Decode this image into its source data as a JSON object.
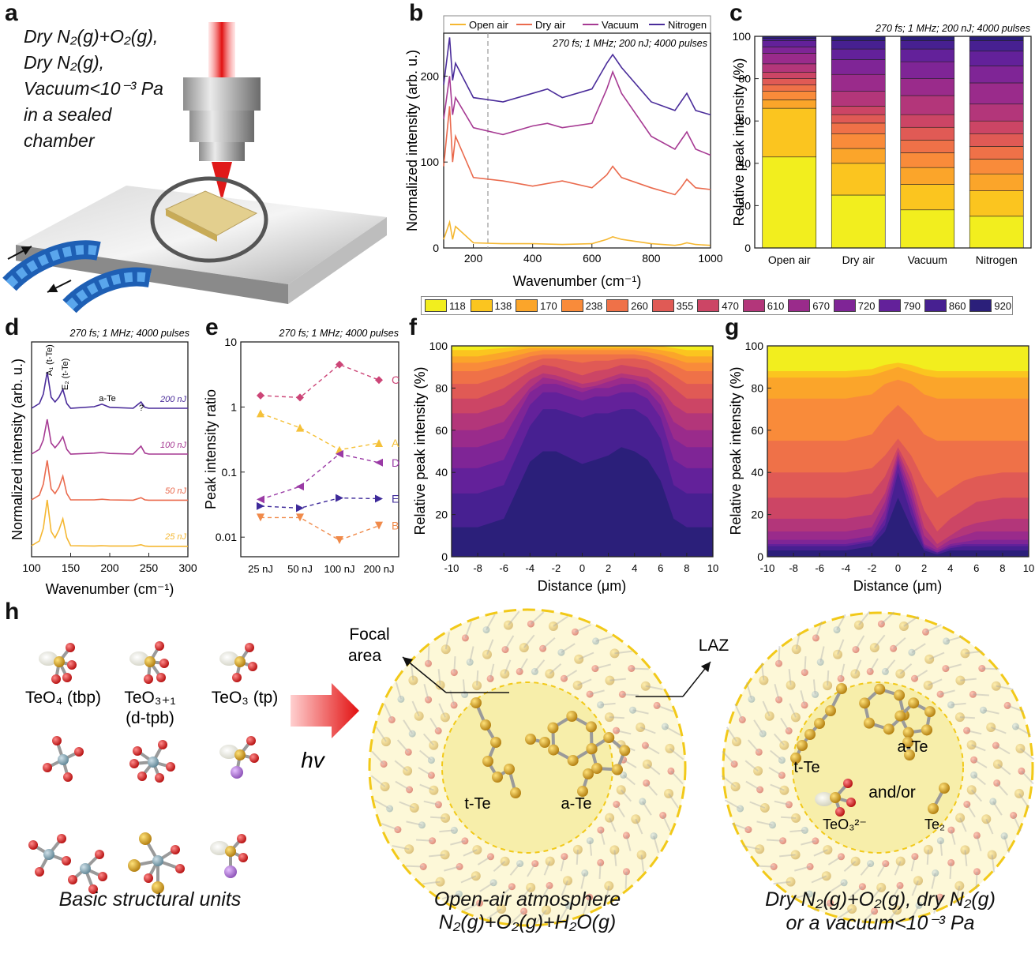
{
  "panel_labels": {
    "a": "a",
    "b": "b",
    "c": "c",
    "d": "d",
    "e": "e",
    "f": "f",
    "g": "g",
    "h": "h"
  },
  "panel_a": {
    "lines": [
      "Dry N₂(g)+O₂(g),",
      "Dry N₂(g),",
      "Vacuum<10⁻³ Pa",
      "in a sealed",
      "chamber"
    ]
  },
  "panel_b": {
    "annotation": "270 fs; 1 MHz; 200 nJ; 4000 pulses",
    "legend": [
      "Open air",
      "Dry air",
      "Vacuum",
      "Nitrogen"
    ],
    "xlabel": "Wavenumber (cm⁻¹)",
    "ylabel": "Normalized intensity (arb. u.)"
  },
  "panel_c": {
    "annotation": "270 fs; 1 MHz; 200 nJ; 4000 pulses",
    "ylabel": "Relative peak intensity (%)"
  },
  "panel_d": {
    "annotation": "270 fs; 1 MHz; 4000 pulses",
    "xlabel": "Wavenumber (cm⁻¹)",
    "ylabel": "Normalized intensity (arb. u.)",
    "peak_labels": [
      "A₁ (t-Te)",
      "E₂ (t-Te)",
      "a-Te",
      "?"
    ]
  },
  "panel_e": {
    "annotation": "270 fs; 1 MHz; 4000 pulses",
    "ylabel": "Peak intensity ratio"
  },
  "panel_f": {
    "xlabel": "Distance (μm)",
    "ylabel": "Relative peak intensity (%)"
  },
  "panel_g": {
    "xlabel": "Distance (μm)",
    "ylabel": "Relative peak intensity (%)"
  },
  "colorbar": {
    "labels": [
      "118",
      "138",
      "170",
      "238",
      "260",
      "355",
      "470",
      "610",
      "670",
      "720",
      "790",
      "860",
      "920"
    ],
    "colors": [
      "#f2ee1e",
      "#fbc51f",
      "#fba52a",
      "#f98b3a",
      "#ef7148",
      "#e05a55",
      "#cc4565",
      "#b3367a",
      "#9a2b8b",
      "#7f2596",
      "#63219a",
      "#472091",
      "#2b1f7a"
    ]
  },
  "panel_h": {
    "units_row1": [
      "TeO₄ (tbp)",
      "TeO₃₊₁",
      "(d-tpb)",
      "TeO₃ (tp)"
    ],
    "hv": "hv",
    "focal_area": [
      "Focal",
      "area"
    ],
    "laz": "LAZ",
    "mid_labels": [
      "t-Te",
      "a-Te"
    ],
    "right_labels": [
      "a-Te",
      "t-Te",
      "and/or",
      "TeO₃²⁻",
      "Te₂"
    ],
    "caption_left": "Basic structural units",
    "caption_mid": [
      "Open-air atmosphere",
      "N₂(g)+O₂(g)+H₂O(g)"
    ],
    "caption_right": [
      "Dry N₂(g)+O₂(g), dry N₂(g)",
      "or a vacuum<10⁻³ Pa"
    ]
  },
  "chart_data": [
    {
      "panel": "b",
      "type": "line",
      "xlim": [
        100,
        1000
      ],
      "ylim": [
        0,
        250
      ],
      "xticks": [
        "200",
        "400",
        "600",
        "800",
        "1000"
      ],
      "yticks": [
        "0",
        "100",
        "200"
      ],
      "series": [
        {
          "name": "Open air",
          "color": "#f5b731",
          "x": [
            100,
            120,
            130,
            140,
            200,
            300,
            400,
            500,
            600,
            650,
            670,
            700,
            800,
            880,
            900,
            920,
            950,
            1000
          ],
          "y": [
            10,
            30,
            10,
            25,
            6,
            5,
            5,
            4,
            5,
            10,
            13,
            10,
            5,
            3,
            4,
            6,
            4,
            3
          ]
        },
        {
          "name": "Dry air",
          "color": "#ea6a4d",
          "x": [
            100,
            120,
            130,
            140,
            200,
            300,
            400,
            500,
            600,
            650,
            670,
            700,
            800,
            880,
            900,
            920,
            950,
            1000
          ],
          "y": [
            95,
            165,
            100,
            130,
            82,
            78,
            72,
            78,
            70,
            85,
            95,
            82,
            70,
            62,
            70,
            80,
            70,
            68
          ]
        },
        {
          "name": "Vacuum",
          "color": "#a63a93",
          "x": [
            100,
            120,
            130,
            140,
            200,
            300,
            400,
            450,
            500,
            600,
            650,
            670,
            700,
            800,
            880,
            900,
            920,
            950,
            1000
          ],
          "y": [
            150,
            200,
            155,
            175,
            140,
            132,
            142,
            145,
            140,
            145,
            185,
            205,
            180,
            130,
            115,
            125,
            135,
            115,
            108
          ]
        },
        {
          "name": "Nitrogen",
          "color": "#4a2c9a",
          "x": [
            100,
            120,
            130,
            140,
            200,
            300,
            400,
            450,
            500,
            600,
            650,
            670,
            700,
            800,
            880,
            900,
            920,
            950,
            1000
          ],
          "y": [
            190,
            245,
            195,
            215,
            175,
            170,
            180,
            185,
            175,
            185,
            215,
            225,
            210,
            170,
            160,
            170,
            180,
            160,
            155
          ]
        }
      ]
    },
    {
      "panel": "c",
      "type": "bar",
      "categories": [
        "Open air",
        "Dry air",
        "Vacuum",
        "Nitrogen"
      ],
      "ylim": [
        0,
        100
      ],
      "yticks": [
        "0",
        "20",
        "40",
        "60",
        "80",
        "100"
      ],
      "stack_order": [
        "118",
        "138",
        "170",
        "238",
        "260",
        "355",
        "470",
        "610",
        "670",
        "720",
        "790",
        "860",
        "920"
      ],
      "values": [
        [
          43,
          23,
          4,
          4,
          3,
          3,
          3,
          4,
          5,
          3,
          3,
          1,
          1
        ],
        [
          25,
          15,
          7,
          7,
          5,
          4,
          4,
          7,
          8,
          7,
          5,
          4,
          2
        ],
        [
          18,
          12,
          8,
          7,
          6,
          6,
          6,
          9,
          8,
          8,
          6,
          4,
          2
        ],
        [
          15,
          12,
          8,
          7,
          6,
          6,
          6,
          8,
          10,
          8,
          7,
          5,
          2
        ]
      ]
    },
    {
      "panel": "d",
      "type": "line",
      "xlim": [
        100,
        300
      ],
      "xticks": [
        "100",
        "150",
        "200",
        "250",
        "300"
      ],
      "series": [
        {
          "name": "200 nJ",
          "color": "#4a2c9a",
          "offset": 3.0,
          "x": [
            100,
            110,
            115,
            120,
            125,
            130,
            135,
            140,
            145,
            150,
            180,
            190,
            200,
            230,
            240,
            245,
            250,
            300
          ],
          "y": [
            0.05,
            0.2,
            0.5,
            1.2,
            0.4,
            0.25,
            0.4,
            0.65,
            0.2,
            0.05,
            0.1,
            0.18,
            0.08,
            0.05,
            0.25,
            0.08,
            0.05,
            0.05
          ]
        },
        {
          "name": "100 nJ",
          "color": "#a63a93",
          "offset": 2.0,
          "x": [
            100,
            110,
            115,
            120,
            125,
            130,
            135,
            140,
            145,
            150,
            180,
            190,
            200,
            230,
            240,
            245,
            250,
            300
          ],
          "y": [
            0.05,
            0.2,
            0.5,
            1.15,
            0.4,
            0.25,
            0.4,
            0.6,
            0.2,
            0.05,
            0.08,
            0.1,
            0.07,
            0.05,
            0.3,
            0.08,
            0.05,
            0.05
          ]
        },
        {
          "name": "50 nJ",
          "color": "#ea6a4d",
          "offset": 1.0,
          "x": [
            100,
            110,
            115,
            120,
            125,
            130,
            135,
            140,
            145,
            150,
            180,
            190,
            200,
            230,
            240,
            245,
            250,
            300
          ],
          "y": [
            0.05,
            0.2,
            0.55,
            1.3,
            0.4,
            0.25,
            0.45,
            0.8,
            0.25,
            0.05,
            0.05,
            0.07,
            0.05,
            0.04,
            0.12,
            0.05,
            0.04,
            0.04
          ]
        },
        {
          "name": "25 nJ",
          "color": "#f5b731",
          "offset": 0,
          "x": [
            100,
            110,
            115,
            120,
            125,
            130,
            135,
            140,
            145,
            150,
            180,
            190,
            200,
            230,
            240,
            245,
            250,
            300
          ],
          "y": [
            0.05,
            0.2,
            0.6,
            1.5,
            0.5,
            0.3,
            0.55,
            0.9,
            0.3,
            0.05,
            0.04,
            0.05,
            0.04,
            0.04,
            0.08,
            0.04,
            0.03,
            0.03
          ]
        }
      ]
    },
    {
      "panel": "e",
      "type": "scatter",
      "categories": [
        "25 nJ",
        "50 nJ",
        "100 nJ",
        "200 nJ"
      ],
      "yscale": "log",
      "ylim": [
        0.005,
        10
      ],
      "yticks": [
        "0.01",
        "0.1",
        "1",
        "10"
      ],
      "series": [
        {
          "name": "C",
          "color": "#cc4577",
          "values": [
            1.5,
            1.4,
            4.5,
            2.6
          ],
          "marker": "diamond"
        },
        {
          "name": "A",
          "color": "#f5c139",
          "values": [
            0.8,
            0.48,
            0.22,
            0.28
          ],
          "marker": "up"
        },
        {
          "name": "D",
          "color": "#9a3aa5",
          "values": [
            0.038,
            0.06,
            0.19,
            0.14
          ],
          "marker": "left"
        },
        {
          "name": "E",
          "color": "#3e2a9a",
          "values": [
            0.03,
            0.028,
            0.04,
            0.039
          ],
          "marker": "right"
        },
        {
          "name": "B",
          "color": "#f08a4a",
          "values": [
            0.02,
            0.02,
            0.009,
            0.015
          ],
          "marker": "down"
        }
      ]
    },
    {
      "panel": "f",
      "type": "area",
      "xlim": [
        -10,
        10
      ],
      "ylim": [
        0,
        100
      ],
      "xticks": [
        "-10",
        "-8",
        "-6",
        "-4",
        "-2",
        "0",
        "2",
        "4",
        "6",
        "8",
        "10"
      ],
      "yticks": [
        "0",
        "20",
        "40",
        "60",
        "80",
        "100"
      ],
      "x": [
        -10,
        -8,
        -6,
        -4,
        -3,
        -2,
        -1,
        0,
        1,
        2,
        3,
        4,
        5,
        6,
        7,
        8,
        10
      ],
      "boundaries_from_top": [
        [
          98,
          98,
          99,
          100,
          100,
          100,
          100,
          100,
          100,
          100,
          100,
          100,
          100,
          100,
          99,
          98,
          98
        ],
        [
          95,
          95,
          97,
          99,
          99,
          99,
          99,
          99,
          99,
          99,
          99,
          99,
          99,
          98,
          97,
          95,
          95
        ],
        [
          92,
          92,
          94,
          97,
          98,
          98,
          98,
          98,
          98,
          98,
          98,
          98,
          97,
          96,
          94,
          92,
          92
        ],
        [
          88,
          88,
          91,
          95,
          96,
          96,
          96,
          96,
          96,
          96,
          96,
          96,
          95,
          93,
          91,
          88,
          88
        ],
        [
          82,
          82,
          86,
          92,
          94,
          94,
          93,
          92,
          93,
          93,
          94,
          94,
          93,
          90,
          86,
          82,
          82
        ],
        [
          75,
          75,
          80,
          88,
          91,
          90,
          88,
          86,
          88,
          89,
          91,
          90,
          89,
          85,
          80,
          75,
          75
        ],
        [
          68,
          68,
          72,
          84,
          87,
          86,
          84,
          82,
          83,
          85,
          87,
          86,
          85,
          80,
          72,
          68,
          68
        ],
        [
          60,
          60,
          64,
          80,
          85,
          84,
          82,
          80,
          81,
          83,
          85,
          84,
          82,
          76,
          64,
          60,
          60
        ],
        [
          52,
          52,
          56,
          78,
          82,
          82,
          80,
          78,
          80,
          80,
          82,
          82,
          79,
          72,
          56,
          52,
          52
        ],
        [
          42,
          42,
          46,
          72,
          78,
          78,
          76,
          74,
          76,
          76,
          78,
          78,
          75,
          66,
          46,
          42,
          42
        ],
        [
          30,
          30,
          34,
          62,
          70,
          70,
          68,
          66,
          68,
          68,
          70,
          70,
          66,
          56,
          34,
          30,
          30
        ],
        [
          14,
          14,
          18,
          45,
          50,
          50,
          47,
          44,
          46,
          48,
          52,
          50,
          46,
          36,
          18,
          14,
          14
        ]
      ]
    },
    {
      "panel": "g",
      "type": "area",
      "xlim": [
        -10,
        10
      ],
      "ylim": [
        0,
        100
      ],
      "xticks": [
        "-10",
        "-8",
        "-6",
        "-4",
        "-2",
        "0",
        "2",
        "4",
        "6",
        "8",
        "10"
      ],
      "yticks": [
        "0",
        "20",
        "40",
        "60",
        "80",
        "100"
      ],
      "x": [
        -10,
        -8,
        -6,
        -4,
        -2,
        -1,
        0,
        1,
        2,
        3,
        4,
        5,
        6,
        8,
        10
      ],
      "boundaries_from_top": [
        [
          88,
          88,
          88,
          88,
          89,
          91,
          92,
          91,
          89,
          88,
          88,
          88,
          88,
          88,
          88
        ],
        [
          85,
          85,
          85,
          85,
          86,
          88,
          90,
          88,
          86,
          85,
          85,
          85,
          85,
          85,
          85
        ],
        [
          75,
          75,
          75,
          75,
          77,
          82,
          84,
          82,
          77,
          75,
          75,
          75,
          75,
          75,
          75
        ],
        [
          55,
          55,
          55,
          55,
          58,
          66,
          72,
          66,
          58,
          55,
          55,
          55,
          55,
          55,
          55
        ],
        [
          40,
          40,
          40,
          40,
          42,
          48,
          56,
          48,
          36,
          28,
          32,
          36,
          38,
          40,
          40
        ],
        [
          28,
          28,
          28,
          28,
          30,
          38,
          52,
          40,
          22,
          12,
          18,
          22,
          26,
          28,
          28
        ],
        [
          18,
          18,
          18,
          18,
          20,
          30,
          50,
          36,
          14,
          6,
          10,
          14,
          16,
          18,
          18
        ],
        [
          12,
          12,
          12,
          12,
          14,
          26,
          48,
          32,
          10,
          4,
          8,
          10,
          12,
          12,
          12
        ],
        [
          8,
          8,
          8,
          8,
          10,
          22,
          46,
          28,
          6,
          3,
          6,
          7,
          8,
          8,
          8
        ],
        [
          6,
          6,
          6,
          6,
          8,
          18,
          44,
          24,
          5,
          2,
          5,
          6,
          6,
          6,
          6
        ],
        [
          5,
          5,
          5,
          5,
          7,
          15,
          40,
          20,
          4,
          2,
          4,
          5,
          5,
          5,
          5
        ],
        [
          3,
          3,
          3,
          3,
          5,
          12,
          28,
          14,
          3,
          1,
          3,
          3,
          3,
          3,
          3
        ]
      ]
    }
  ]
}
